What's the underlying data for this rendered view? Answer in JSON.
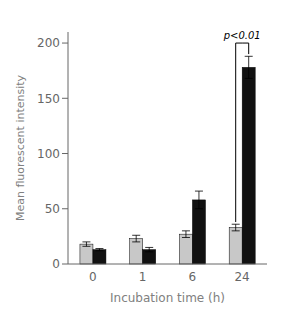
{
  "chart_data": {
    "type": "bar",
    "categories": [
      "0",
      "1",
      "6",
      "24"
    ],
    "series": [
      {
        "color": "#c8c8c8",
        "values": [
          18,
          23,
          27,
          33
        ],
        "errors": [
          2,
          3,
          3,
          3
        ]
      },
      {
        "color": "#111111",
        "values": [
          13,
          13,
          58,
          178
        ],
        "errors": [
          1,
          2,
          8,
          10
        ]
      }
    ],
    "xlabel": "Incubation time (h)",
    "ylabel": "Mean fluorescent intensity",
    "ylim": [
      0,
      210
    ],
    "yticks": [
      0,
      50,
      100,
      150,
      200
    ],
    "grid": false,
    "annotations": [
      {
        "text": "p<0.01",
        "x": "24",
        "y": 200,
        "bracket": [
          38,
          190
        ]
      }
    ]
  }
}
